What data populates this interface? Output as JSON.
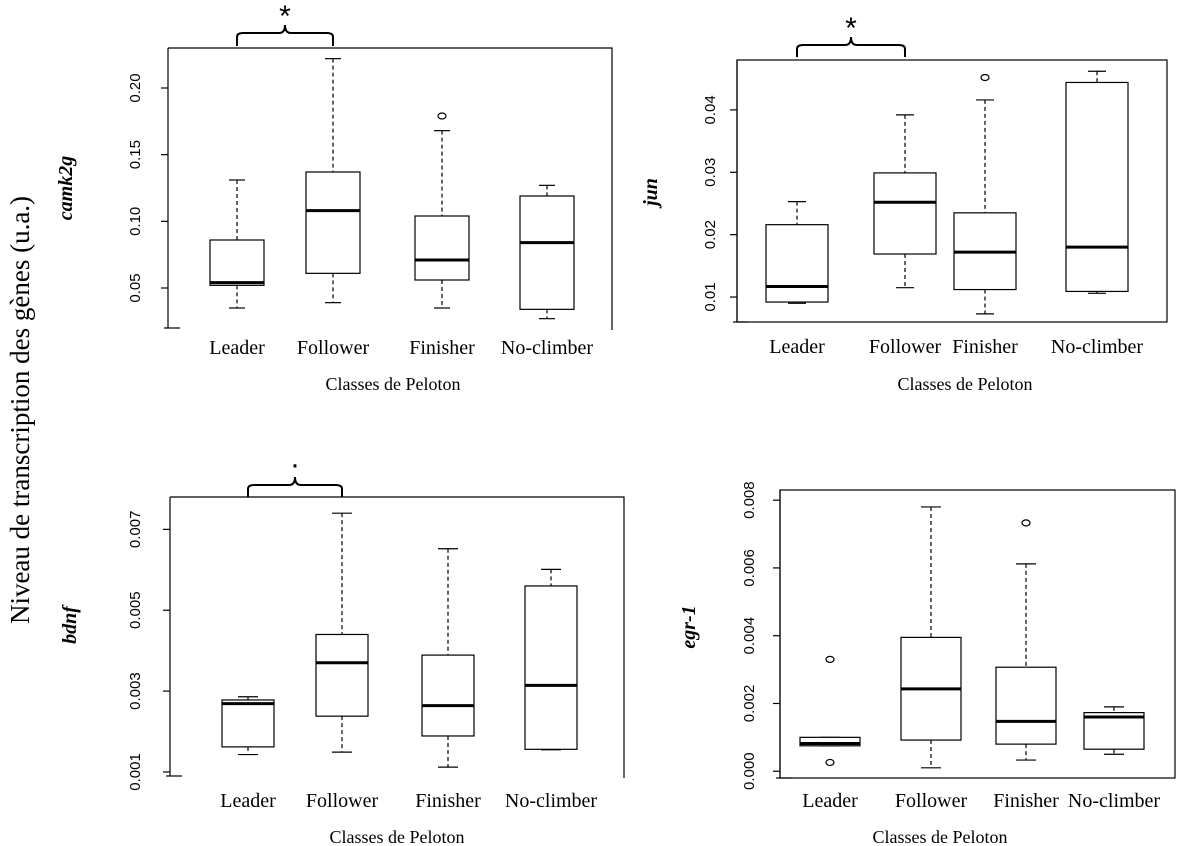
{
  "figure": {
    "y_axis_title": "Niveau de transcription des gènes (u.a.)"
  },
  "chart_data": [
    {
      "type": "box",
      "title": "",
      "xlabel": "Classes de Peloton",
      "ylabel": "camk2g",
      "ylim": [
        0.02,
        0.23
      ],
      "yticks": [
        0.05,
        0.1,
        0.15,
        0.2
      ],
      "ytick_labels": [
        "0.05",
        "0.10",
        "0.15",
        "0.20"
      ],
      "categories": [
        "Leader",
        "Follower",
        "Finisher",
        "No-climber"
      ],
      "boxes": [
        {
          "whisker_low": 0.035,
          "q1": 0.052,
          "median": 0.054,
          "q3": 0.086,
          "whisker_high": 0.131,
          "outliers": []
        },
        {
          "whisker_low": 0.039,
          "q1": 0.061,
          "median": 0.108,
          "q3": 0.137,
          "whisker_high": 0.222,
          "outliers": []
        },
        {
          "whisker_low": 0.035,
          "q1": 0.056,
          "median": 0.071,
          "q3": 0.104,
          "whisker_high": 0.168,
          "outliers": [
            0.179
          ]
        },
        {
          "whisker_low": 0.027,
          "q1": 0.034,
          "median": 0.084,
          "q3": 0.119,
          "whisker_high": 0.127,
          "outliers": []
        }
      ],
      "significance": {
        "between": [
          "Leader",
          "Follower"
        ],
        "symbol": "*"
      }
    },
    {
      "type": "box",
      "title": "",
      "xlabel": "Classes de Peloton",
      "ylabel": "jun",
      "ylim": [
        0.006,
        0.048
      ],
      "yticks": [
        0.01,
        0.02,
        0.03,
        0.04
      ],
      "ytick_labels": [
        "0.01",
        "0.02",
        "0.03",
        "0.04"
      ],
      "categories": [
        "Leader",
        "Follower",
        "Finisher",
        "No-climber"
      ],
      "boxes": [
        {
          "whisker_low": 0.009,
          "q1": 0.0092,
          "median": 0.0117,
          "q3": 0.0216,
          "whisker_high": 0.0253,
          "outliers": []
        },
        {
          "whisker_low": 0.0115,
          "q1": 0.0169,
          "median": 0.0252,
          "q3": 0.0299,
          "whisker_high": 0.0392,
          "outliers": []
        },
        {
          "whisker_low": 0.0073,
          "q1": 0.0112,
          "median": 0.0172,
          "q3": 0.0235,
          "whisker_high": 0.0416,
          "outliers": [
            0.0452
          ]
        },
        {
          "whisker_low": 0.0106,
          "q1": 0.0109,
          "median": 0.018,
          "q3": 0.0444,
          "whisker_high": 0.0462,
          "outliers": []
        }
      ],
      "significance": {
        "between": [
          "Leader",
          "Follower"
        ],
        "symbol": "*"
      }
    },
    {
      "type": "box",
      "title": "",
      "xlabel": "Classes de Peloton",
      "ylabel": "bdnf",
      "ylim": [
        0.0009,
        0.0078
      ],
      "yticks": [
        0.001,
        0.003,
        0.005,
        0.007
      ],
      "ytick_labels": [
        "0.001",
        "0.003",
        "0.005",
        "0.007"
      ],
      "categories": [
        "Leader",
        "Follower",
        "Finisher",
        "No-climber"
      ],
      "boxes": [
        {
          "whisker_low": 0.00143,
          "q1": 0.00162,
          "median": 0.00269,
          "q3": 0.00278,
          "whisker_high": 0.00286,
          "outliers": []
        },
        {
          "whisker_low": 0.00149,
          "q1": 0.00238,
          "median": 0.0037,
          "q3": 0.0044,
          "whisker_high": 0.0074,
          "outliers": []
        },
        {
          "whisker_low": 0.00112,
          "q1": 0.00189,
          "median": 0.00264,
          "q3": 0.00389,
          "whisker_high": 0.00652,
          "outliers": []
        },
        {
          "whisker_low": 0.00155,
          "q1": 0.00156,
          "median": 0.00314,
          "q3": 0.0056,
          "whisker_high": 0.00601,
          "outliers": []
        }
      ],
      "significance": {
        "between": [
          "Leader",
          "Follower"
        ],
        "symbol": "·"
      }
    },
    {
      "type": "box",
      "title": "",
      "xlabel": "Classes de Peloton",
      "ylabel": "egr-1",
      "ylim": [
        -0.0002,
        0.0083
      ],
      "yticks": [
        0.0,
        0.002,
        0.004,
        0.006,
        0.008
      ],
      "ytick_labels": [
        "0.000",
        "0.002",
        "0.004",
        "0.006",
        "0.008"
      ],
      "categories": [
        "Leader",
        "Follower",
        "Finisher",
        "No-climber"
      ],
      "boxes": [
        {
          "whisker_low": 0.00075,
          "q1": 0.00075,
          "median": 0.00082,
          "q3": 0.001,
          "whisker_high": 0.001,
          "outliers": [
            0.00026,
            0.0033
          ]
        },
        {
          "whisker_low": 0.0001,
          "q1": 0.00092,
          "median": 0.00243,
          "q3": 0.00395,
          "whisker_high": 0.0078,
          "outliers": []
        },
        {
          "whisker_low": 0.00033,
          "q1": 0.0008,
          "median": 0.00147,
          "q3": 0.00307,
          "whisker_high": 0.00612,
          "outliers": [
            0.00733
          ]
        },
        {
          "whisker_low": 0.0005,
          "q1": 0.00065,
          "median": 0.0016,
          "q3": 0.00173,
          "whisker_high": 0.0019,
          "outliers": []
        }
      ],
      "significance": null
    }
  ]
}
